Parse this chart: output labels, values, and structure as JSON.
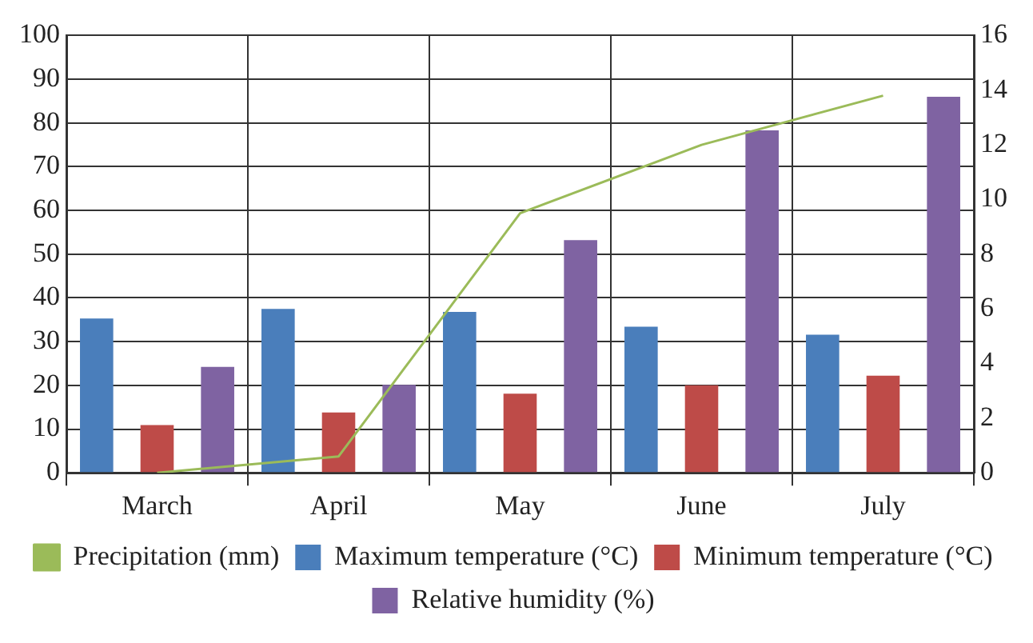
{
  "chart_data": {
    "type": "bar",
    "categories": [
      "March",
      "April",
      "May",
      "June",
      "July"
    ],
    "series": [
      {
        "name": "Maximum temperature (°C)",
        "color": "#4a7ebb",
        "values": [
          35.3,
          37.5,
          36.8,
          33.4,
          31.6
        ]
      },
      {
        "name": "Minimum temperature (°C)",
        "color": "#be4b48",
        "values": [
          10.9,
          13.8,
          18.1,
          20.0,
          22.2
        ]
      },
      {
        "name": "Relative humidity (%)",
        "color": "#7f63a2",
        "values": [
          24.2,
          20.1,
          53.2,
          78.3,
          86.0
        ]
      },
      {
        "name": "Precipitation (mm)",
        "type": "line",
        "axis": "y2",
        "color": "#9bbb59",
        "values": [
          0,
          0.6,
          9.5,
          12.0,
          13.8
        ]
      }
    ],
    "ylim": [
      0,
      100
    ],
    "yticks": [
      0,
      10,
      20,
      30,
      40,
      50,
      60,
      70,
      80,
      90,
      100
    ],
    "y2lim": [
      0,
      16
    ],
    "y2ticks": [
      0,
      2,
      4,
      6,
      8,
      10,
      12,
      14,
      16
    ],
    "grid": true,
    "legend": "bottom",
    "marker": "none"
  }
}
